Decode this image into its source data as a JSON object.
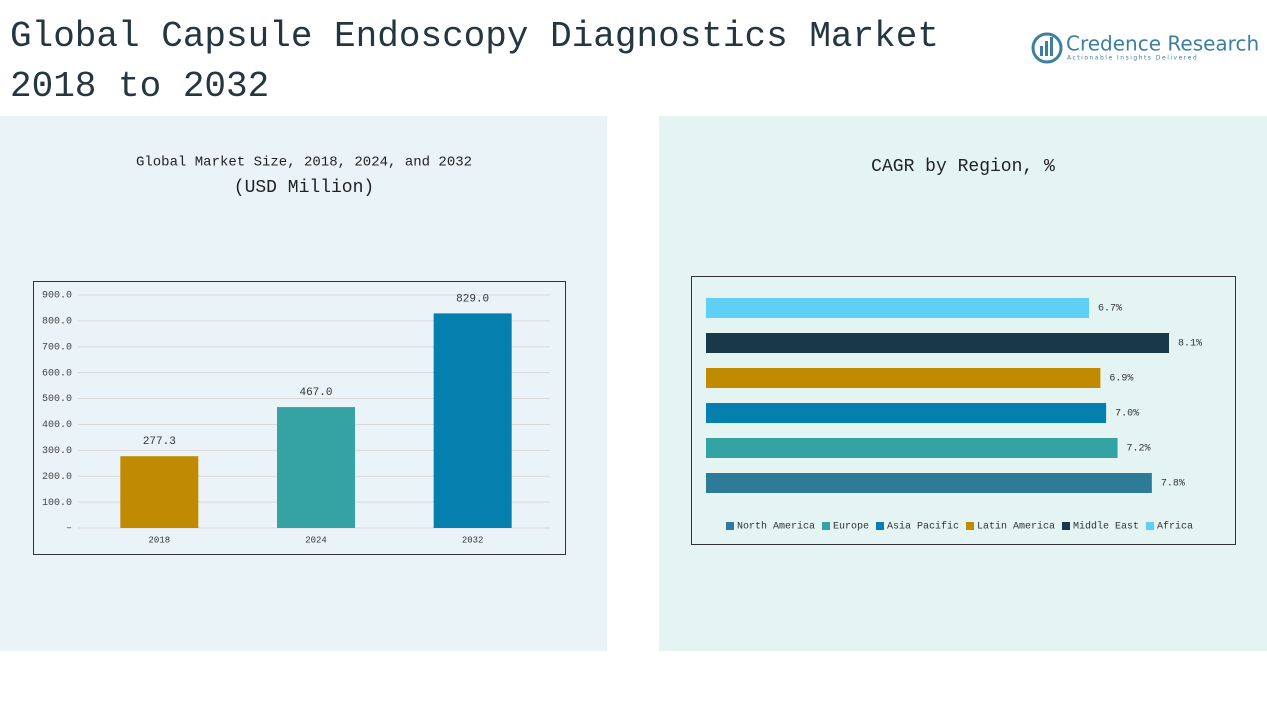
{
  "header": {
    "title": "Global Capsule Endoscopy Diagnostics Market 2018 to 2032",
    "logo": "Credence Research",
    "tagline": "Actionable Insights Delivered"
  },
  "chart_data": [
    {
      "type": "bar",
      "orientation": "vertical",
      "title": "Global Market Size, 2018, 2024, and 2032",
      "subtitle": "(USD Million)",
      "categories": [
        "2018",
        "2024",
        "2032"
      ],
      "values": [
        277.3,
        467.0,
        829.0
      ],
      "value_labels": [
        "277.3",
        "467.0",
        "829.0"
      ],
      "colors": [
        "#c08b00",
        "#35a3a3",
        "#0580ae"
      ],
      "ylim": [
        0,
        900
      ],
      "yticks": [
        {
          "value": 0,
          "label": "–"
        },
        {
          "value": 100,
          "label": "100.0"
        },
        {
          "value": 200,
          "label": "200.0"
        },
        {
          "value": 300,
          "label": "300.0"
        },
        {
          "value": 400,
          "label": "400.0"
        },
        {
          "value": 500,
          "label": "500.0"
        },
        {
          "value": 600,
          "label": "600.0"
        },
        {
          "value": 700,
          "label": "700.0"
        },
        {
          "value": 800,
          "label": "800.0"
        },
        {
          "value": 900,
          "label": "900.0"
        }
      ],
      "grid": true
    },
    {
      "type": "bar",
      "orientation": "horizontal",
      "title": "CAGR by Region, %",
      "categories": [
        "North America",
        "Europe",
        "Asia Pacific",
        "Latin America",
        "Middle East",
        "Africa"
      ],
      "values": [
        7.8,
        7.2,
        7.0,
        6.9,
        8.1,
        6.7
      ],
      "value_labels": [
        "7.8%",
        "7.2%",
        "7.0%",
        "6.9%",
        "8.1%",
        "6.7%"
      ],
      "colors": [
        "#2e7a99",
        "#35a3a3",
        "#0580ae",
        "#c08b00",
        "#17394a",
        "#5fcff5"
      ],
      "legend": "bottom"
    }
  ]
}
